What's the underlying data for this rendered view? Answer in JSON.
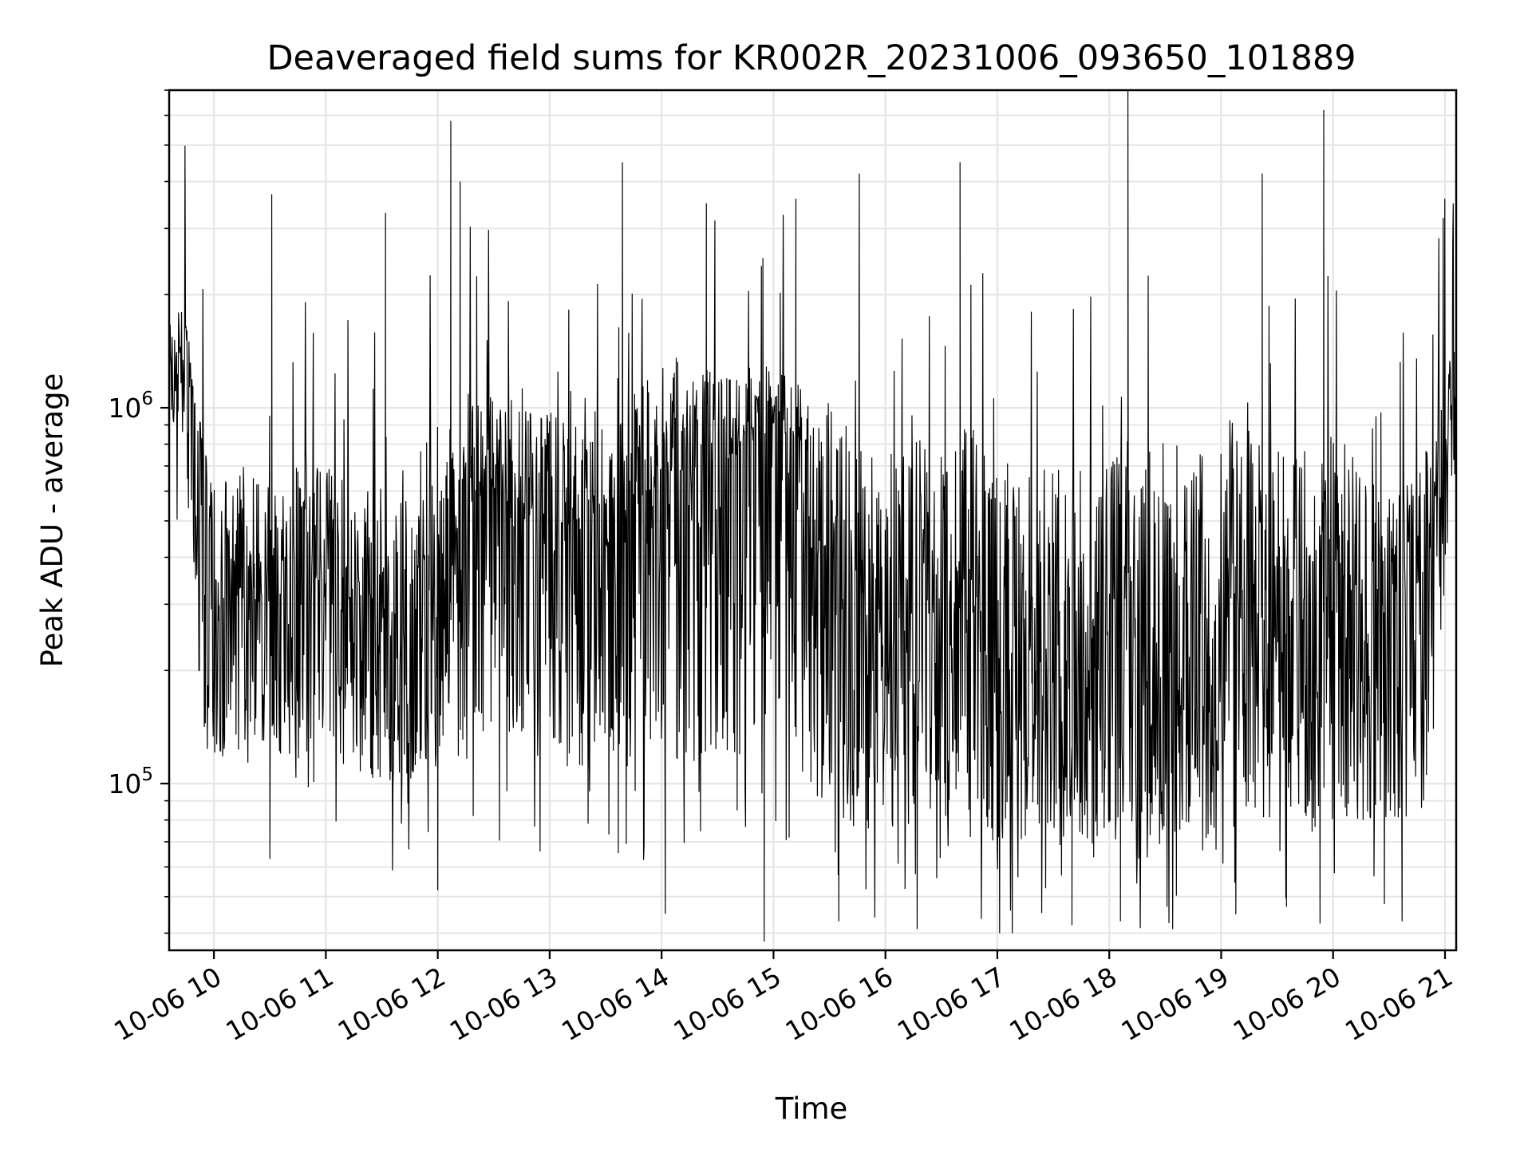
{
  "chart_data": {
    "type": "line",
    "title": "Deaveraged field sums for KR002R_20231006_093650_101889",
    "xlabel": "Time",
    "ylabel": "Peak ADU - average",
    "yscale": "log",
    "ylim": [
      36000,
      7000000
    ],
    "xlim": [
      "2023-10-06 09:36",
      "2023-10-06 21:06"
    ],
    "grid": true,
    "line_color": "#000000",
    "x_ticks": [
      {
        "x": "2023-10-06 10:00",
        "label": "10-06 10"
      },
      {
        "x": "2023-10-06 11:00",
        "label": "10-06 11"
      },
      {
        "x": "2023-10-06 12:00",
        "label": "10-06 12"
      },
      {
        "x": "2023-10-06 13:00",
        "label": "10-06 13"
      },
      {
        "x": "2023-10-06 14:00",
        "label": "10-06 14"
      },
      {
        "x": "2023-10-06 15:00",
        "label": "10-06 15"
      },
      {
        "x": "2023-10-06 16:00",
        "label": "10-06 16"
      },
      {
        "x": "2023-10-06 17:00",
        "label": "10-06 17"
      },
      {
        "x": "2023-10-06 18:00",
        "label": "10-06 18"
      },
      {
        "x": "2023-10-06 19:00",
        "label": "10-06 19"
      },
      {
        "x": "2023-10-06 20:00",
        "label": "10-06 20"
      },
      {
        "x": "2023-10-06 21:00",
        "label": "10-06 21"
      }
    ],
    "y_ticks": [
      {
        "value": 100000,
        "base": "10",
        "exp": "5"
      },
      {
        "value": 1000000,
        "base": "10",
        "exp": "6"
      }
    ],
    "series": [
      {
        "x": [
          "2023-10-06 09:36",
          "2023-10-06 09:45",
          "2023-10-06 09:53",
          "2023-10-06 10:00",
          "2023-10-06 10:15",
          "2023-10-06 10:30",
          "2023-10-06 10:45",
          "2023-10-06 11:00",
          "2023-10-06 11:15",
          "2023-10-06 11:30",
          "2023-10-06 11:45",
          "2023-10-06 12:00",
          "2023-10-06 12:15",
          "2023-10-06 12:30",
          "2023-10-06 12:45",
          "2023-10-06 13:00",
          "2023-10-06 13:15",
          "2023-10-06 13:30",
          "2023-10-06 13:45",
          "2023-10-06 14:00",
          "2023-10-06 14:15",
          "2023-10-06 14:30",
          "2023-10-06 14:45",
          "2023-10-06 15:00",
          "2023-10-06 15:15",
          "2023-10-06 15:30",
          "2023-10-06 15:45",
          "2023-10-06 16:00",
          "2023-10-06 16:15",
          "2023-10-06 16:30",
          "2023-10-06 16:45",
          "2023-10-06 17:00",
          "2023-10-06 17:15",
          "2023-10-06 17:30",
          "2023-10-06 17:45",
          "2023-10-06 18:00",
          "2023-10-06 18:15",
          "2023-10-06 18:30",
          "2023-10-06 18:45",
          "2023-10-06 19:00",
          "2023-10-06 19:15",
          "2023-10-06 19:30",
          "2023-10-06 19:45",
          "2023-10-06 20:00",
          "2023-10-06 20:15",
          "2023-10-06 20:30",
          "2023-10-06 20:45",
          "2023-10-06 20:55",
          "2023-10-06 21:06"
        ],
        "median": [
          1300000,
          1100000,
          700000,
          300000,
          290000,
          300000,
          320000,
          350000,
          300000,
          260000,
          280000,
          320000,
          550000,
          600000,
          500000,
          520000,
          460000,
          420000,
          520000,
          650000,
          640000,
          700000,
          760000,
          900000,
          780000,
          260000,
          280000,
          260000,
          260000,
          280000,
          270000,
          260000,
          220000,
          230000,
          240000,
          260000,
          230000,
          250000,
          230000,
          280000,
          260000,
          270000,
          250000,
          280000,
          270000,
          280000,
          320000,
          450000,
          1300000
        ],
        "low": [
          1000000,
          700000,
          150000,
          120000,
          110000,
          120000,
          110000,
          130000,
          110000,
          100000,
          100000,
          120000,
          110000,
          130000,
          100000,
          120000,
          110000,
          120000,
          100000,
          110000,
          110000,
          120000,
          110000,
          130000,
          100000,
          80000,
          70000,
          80000,
          75000,
          75000,
          72000,
          70000,
          70000,
          72000,
          70000,
          65000,
          70000,
          75000,
          70000,
          72000,
          72000,
          75000,
          70000,
          75000,
          80000,
          80000,
          80000,
          150000,
          900000
        ],
        "high": [
          2000000,
          1800000,
          900000,
          700000,
          750000,
          650000,
          700000,
          750000,
          650000,
          650000,
          700000,
          900000,
          1100000,
          1100000,
          1000000,
          1000000,
          900000,
          1000000,
          1100000,
          1300000,
          1200000,
          1300000,
          1300000,
          1300000,
          1200000,
          1100000,
          850000,
          750000,
          800000,
          900000,
          900000,
          800000,
          750000,
          700000,
          700000,
          800000,
          850000,
          850000,
          750000,
          800000,
          850000,
          800000,
          800000,
          900000,
          700000,
          600000,
          650000,
          900000,
          2100000
        ]
      }
    ],
    "spikes_high": [
      {
        "x": "2023-10-06 10:31",
        "y": 3700000
      },
      {
        "x": "2023-10-06 11:32",
        "y": 3300000
      },
      {
        "x": "2023-10-06 12:07",
        "y": 5800000
      },
      {
        "x": "2023-10-06 12:12",
        "y": 4000000
      },
      {
        "x": "2023-10-06 13:39",
        "y": 4500000
      },
      {
        "x": "2023-10-06 14:24",
        "y": 3500000
      },
      {
        "x": "2023-10-06 15:12",
        "y": 3600000
      },
      {
        "x": "2023-10-06 15:46",
        "y": 4200000
      },
      {
        "x": "2023-10-06 16:40",
        "y": 4500000
      },
      {
        "x": "2023-10-06 18:10",
        "y": 7000000
      },
      {
        "x": "2023-10-06 19:22",
        "y": 4200000
      },
      {
        "x": "2023-10-06 19:55",
        "y": 6200000
      },
      {
        "x": "2023-10-06 20:59",
        "y": 3200000
      }
    ],
    "spikes_low": [
      {
        "x": "2023-10-06 10:30",
        "y": 63000
      },
      {
        "x": "2023-10-06 12:00",
        "y": 52000
      },
      {
        "x": "2023-10-06 14:02",
        "y": 45000
      },
      {
        "x": "2023-10-06 14:55",
        "y": 38000
      },
      {
        "x": "2023-10-06 15:35",
        "y": 43000
      },
      {
        "x": "2023-10-06 16:17",
        "y": 41000
      },
      {
        "x": "2023-10-06 17:08",
        "y": 40000
      },
      {
        "x": "2023-10-06 17:40",
        "y": 42000
      },
      {
        "x": "2023-10-06 18:06",
        "y": 43000
      },
      {
        "x": "2023-10-06 18:34",
        "y": 41000
      },
      {
        "x": "2023-10-06 19:35",
        "y": 47000
      },
      {
        "x": "2023-10-06 20:37",
        "y": 43000
      }
    ]
  }
}
